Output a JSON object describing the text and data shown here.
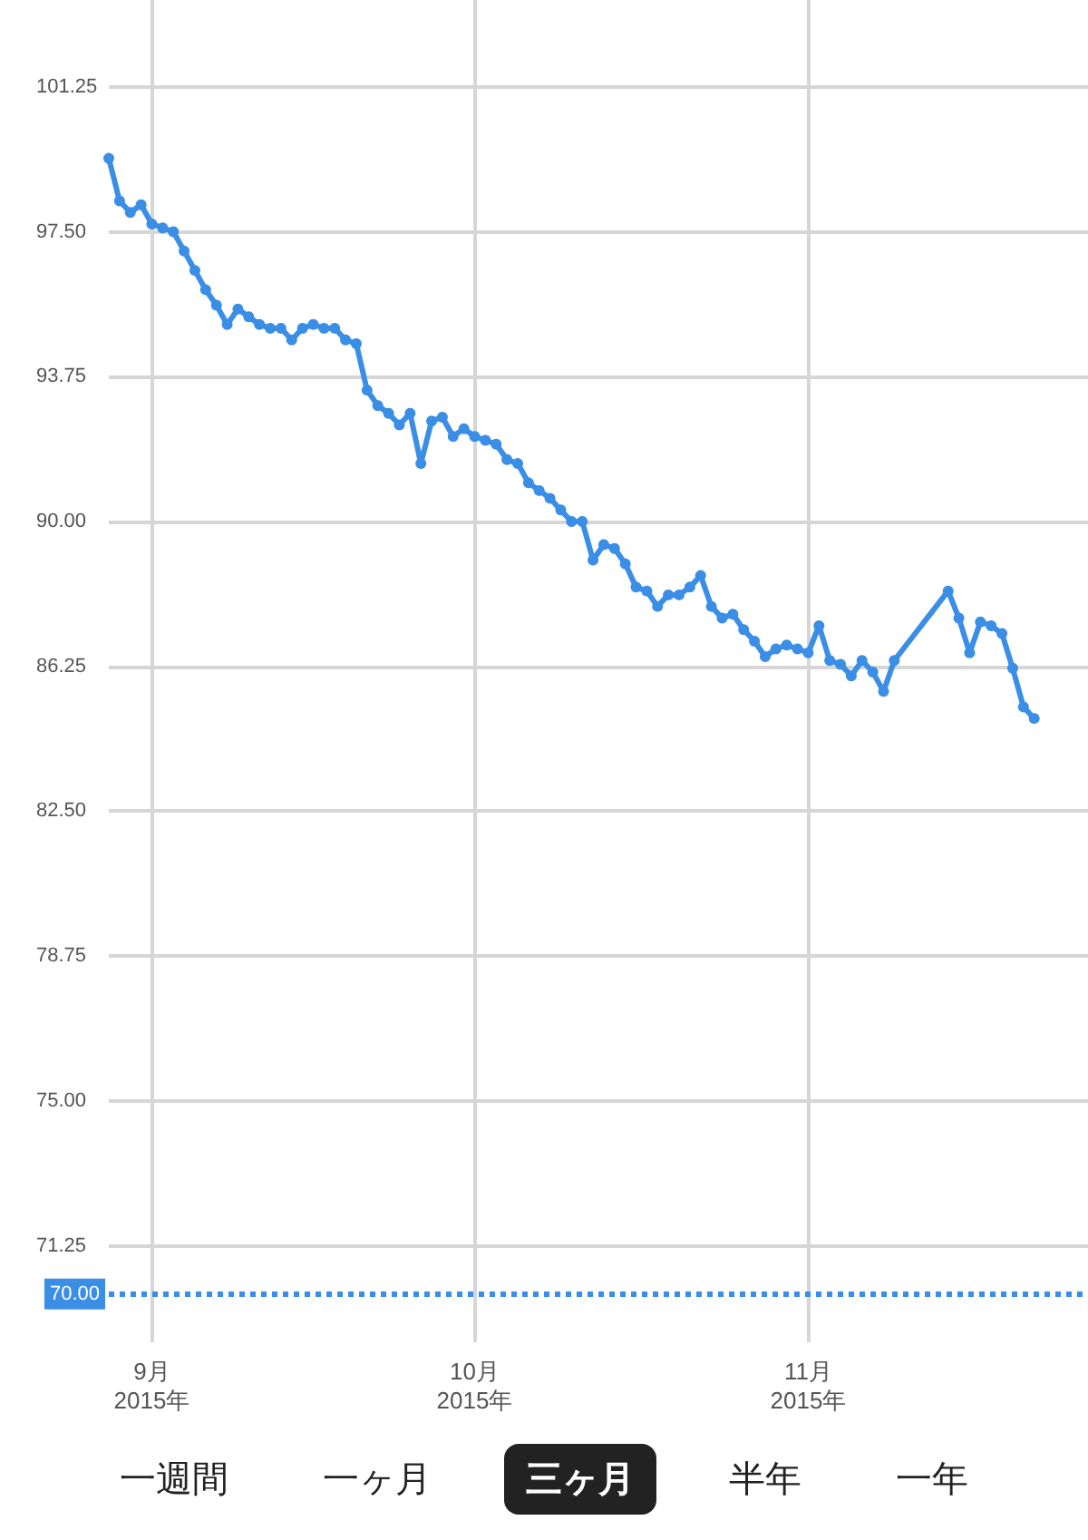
{
  "chart_data": {
    "type": "line",
    "x": [
      "2015-08-28",
      "2015-08-29",
      "2015-08-30",
      "2015-08-31",
      "2015-09-01",
      "2015-09-02",
      "2015-09-03",
      "2015-09-04",
      "2015-09-05",
      "2015-09-06",
      "2015-09-07",
      "2015-09-08",
      "2015-09-09",
      "2015-09-10",
      "2015-09-11",
      "2015-09-12",
      "2015-09-13",
      "2015-09-14",
      "2015-09-15",
      "2015-09-16",
      "2015-09-17",
      "2015-09-18",
      "2015-09-19",
      "2015-09-20",
      "2015-09-21",
      "2015-09-22",
      "2015-09-23",
      "2015-09-24",
      "2015-09-25",
      "2015-09-26",
      "2015-09-27",
      "2015-09-28",
      "2015-09-29",
      "2015-09-30",
      "2015-10-01",
      "2015-10-02",
      "2015-10-03",
      "2015-10-04",
      "2015-10-05",
      "2015-10-06",
      "2015-10-07",
      "2015-10-08",
      "2015-10-09",
      "2015-10-10",
      "2015-10-11",
      "2015-10-12",
      "2015-10-13",
      "2015-10-14",
      "2015-10-15",
      "2015-10-16",
      "2015-10-17",
      "2015-10-18",
      "2015-10-19",
      "2015-10-20",
      "2015-10-21",
      "2015-10-22",
      "2015-10-23",
      "2015-10-24",
      "2015-10-25",
      "2015-10-26",
      "2015-10-27",
      "2015-10-28",
      "2015-10-29",
      "2015-10-30",
      "2015-10-31",
      "2015-11-01",
      "2015-11-02",
      "2015-11-03",
      "2015-11-04",
      "2015-11-05",
      "2015-11-06",
      "2015-11-07",
      "2015-11-08",
      "2015-11-09",
      "2015-11-14",
      "2015-11-15",
      "2015-11-16",
      "2015-11-17",
      "2015-11-18",
      "2015-11-19",
      "2015-11-20",
      "2015-11-21",
      "2015-11-22"
    ],
    "series": [
      {
        "color": "#3a8ee6",
        "values": [
          99.4,
          98.3,
          98.0,
          98.2,
          97.7,
          97.6,
          97.5,
          97.0,
          96.5,
          96.0,
          95.6,
          95.1,
          95.5,
          95.3,
          95.1,
          95.0,
          95.0,
          94.7,
          95.0,
          95.1,
          95.0,
          95.0,
          94.7,
          94.6,
          93.4,
          93.0,
          92.8,
          92.5,
          92.8,
          91.5,
          92.6,
          92.7,
          92.2,
          92.4,
          92.2,
          92.1,
          92.0,
          91.6,
          91.5,
          91.0,
          90.8,
          90.6,
          90.3,
          90.0,
          90.0,
          89.0,
          89.4,
          89.3,
          88.9,
          88.3,
          88.2,
          87.8,
          88.1,
          88.1,
          88.3,
          88.6,
          87.8,
          87.5,
          87.6,
          87.2,
          86.9,
          86.5,
          86.7,
          86.8,
          86.7,
          86.6,
          87.3,
          86.4,
          86.3,
          86.0,
          86.4,
          86.1,
          85.6,
          86.4,
          88.2,
          87.5,
          86.6,
          87.4,
          87.3,
          87.1,
          86.2,
          85.2,
          84.9
        ]
      }
    ],
    "xlim": [
      "2015-08-28",
      "2015-11-27"
    ],
    "xticks": [
      {
        "value": "2015-09-01",
        "label": "9月\n2015年"
      },
      {
        "value": "2015-10-01",
        "label": "10月\n2015年"
      },
      {
        "value": "2015-11-01",
        "label": "11月\n2015年"
      }
    ],
    "ylim": [
      68.75,
      103.5
    ],
    "yticks": [
      {
        "value": 71.25,
        "label": "71.25"
      },
      {
        "value": 75,
        "label": "75.00"
      },
      {
        "value": 78.75,
        "label": "78.75"
      },
      {
        "value": 82.5,
        "label": "82.50"
      },
      {
        "value": 86.25,
        "label": "86.25"
      },
      {
        "value": 90,
        "label": "90.00"
      },
      {
        "value": 93.75,
        "label": "93.75"
      },
      {
        "value": 97.5,
        "label": "97.50"
      },
      {
        "value": 101.25,
        "label": "101.25"
      }
    ],
    "ref_lines": [
      {
        "axis": "y",
        "value": 70,
        "label": "70.00",
        "color": "#3a8ee6",
        "line_style": "dotted"
      }
    ],
    "annotations": [
      "一週間",
      "一ヶ月",
      "三ヶ月",
      "半年",
      "一年"
    ],
    "grid": true,
    "marker": "circle",
    "line_style": "solid"
  }
}
